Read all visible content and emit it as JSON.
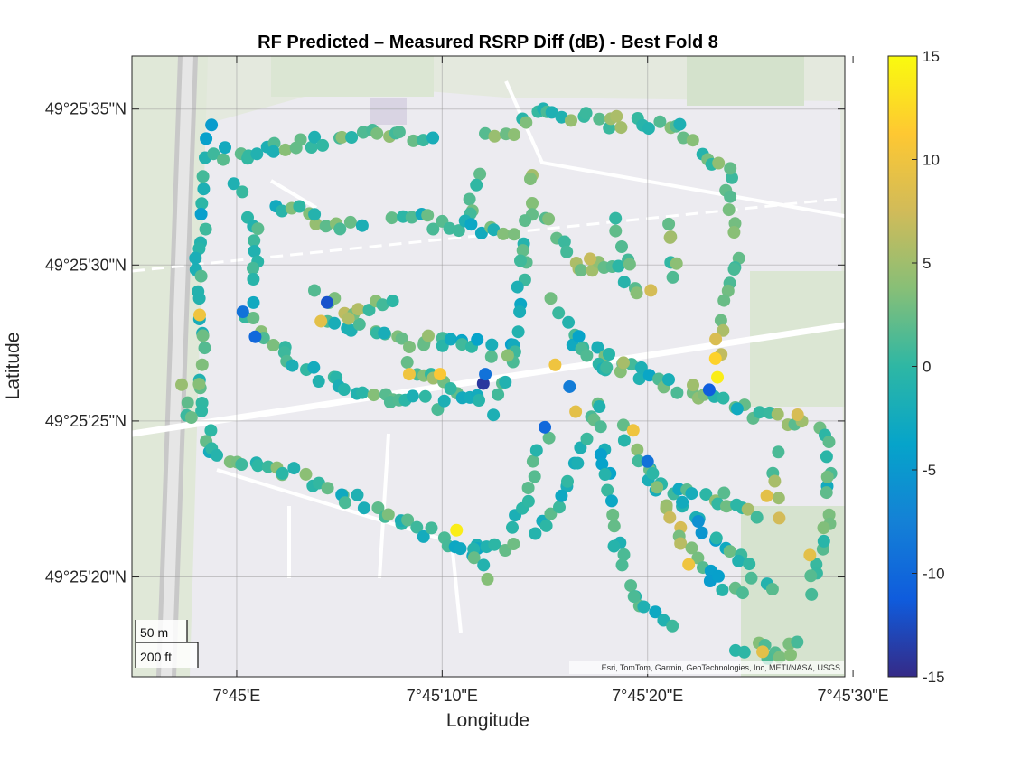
{
  "chart_data": {
    "type": "scatter",
    "title": "RF Predicted – Measured RSRP Diff (dB) - Best Fold 8",
    "xlabel": "Longitude",
    "ylabel": "Latitude",
    "x_unit": "seconds past 7°45'E",
    "y_unit": "seconds past 49°25'N",
    "xlim": [
      -5.1,
      29.6
    ],
    "ylim": [
      16.8,
      36.7
    ],
    "x_ticks": [
      0,
      10,
      20,
      30
    ],
    "x_tick_labels": [
      "7°45'E",
      "7°45'10\"E",
      "7°45'20\"E",
      "7°45'30\"E"
    ],
    "y_ticks": [
      20,
      25,
      30,
      35
    ],
    "y_tick_labels": [
      "49°25'20\"N",
      "49°25'25\"N",
      "49°25'30\"N",
      "49°25'35\"N"
    ],
    "grid": true,
    "colorbar": {
      "ticks": [
        15,
        10,
        5,
        0,
        -5,
        -10,
        -15
      ],
      "limits": [
        -15,
        15
      ],
      "colormap": "parula",
      "placement": "right"
    },
    "basemap": "topographic",
    "attribution": "Esri, TomTom, Garmin, GeoTechnologies, Inc, METI/NASA, USGS",
    "scalebar": [
      "50 m",
      "200 ft"
    ],
    "routes": [
      {
        "path": [
          [
            -1.4,
            34.3
          ],
          [
            -1.8,
            30.0
          ],
          [
            -1.7,
            26.0
          ],
          [
            -1.2,
            23.8
          ]
        ],
        "values": [
          -2,
          -1,
          1,
          0
        ]
      },
      {
        "path": [
          [
            -1.2,
            33.5
          ],
          [
            2.0,
            33.7
          ],
          [
            6.0,
            34.2
          ],
          [
            9.4,
            34.0
          ]
        ],
        "values": [
          0,
          1,
          2,
          1
        ]
      },
      {
        "path": [
          [
            -2.6,
            26.2
          ],
          [
            -2.1,
            24.9
          ]
        ],
        "values": [
          2,
          0
        ]
      },
      {
        "path": [
          [
            -1.2,
            23.9
          ],
          [
            2.0,
            23.5
          ],
          [
            5.0,
            22.7
          ],
          [
            8.0,
            21.8
          ],
          [
            11.5,
            20.9
          ],
          [
            13.5,
            21.1
          ]
        ],
        "values": [
          1,
          2,
          0,
          1,
          -2,
          0
        ]
      },
      {
        "path": [
          [
            11.5,
            21.1
          ],
          [
            12.0,
            19.8
          ]
        ],
        "values": [
          2,
          1
        ]
      },
      {
        "path": [
          [
            14.4,
            21.3
          ],
          [
            16.0,
            22.7
          ],
          [
            17.6,
            25.4
          ]
        ],
        "values": [
          -1,
          0,
          2
        ]
      },
      {
        "path": [
          [
            13.5,
            21.5
          ],
          [
            15.0,
            24.5
          ]
        ],
        "values": [
          0,
          1
        ]
      },
      {
        "path": [
          [
            12.2,
            34.0
          ],
          [
            15.0,
            34.9
          ],
          [
            18.0,
            34.6
          ],
          [
            21.5,
            34.3
          ],
          [
            23.9,
            32.9
          ]
        ],
        "values": [
          2,
          1,
          3,
          1,
          2
        ]
      },
      {
        "path": [
          [
            23.9,
            32.9
          ],
          [
            24.3,
            30.0
          ],
          [
            23.4,
            27.2
          ]
        ],
        "values": [
          1,
          3,
          7
        ]
      },
      {
        "path": [
          [
            11.8,
            33.1
          ],
          [
            11.3,
            31.5
          ]
        ],
        "values": [
          0,
          2
        ]
      },
      {
        "path": [
          [
            7.5,
            31.5
          ],
          [
            11.0,
            31.3
          ],
          [
            13.5,
            31.0
          ]
        ],
        "values": [
          1,
          -1,
          2
        ]
      },
      {
        "path": [
          [
            2.0,
            32.0
          ],
          [
            4.0,
            31.5
          ],
          [
            6.0,
            31.2
          ]
        ],
        "values": [
          0,
          2,
          1
        ]
      },
      {
        "path": [
          [
            14.3,
            33.0
          ],
          [
            14.0,
            30.0
          ],
          [
            13.5,
            27.5
          ],
          [
            12.7,
            25.3
          ]
        ],
        "values": [
          3,
          1,
          -2,
          0
        ]
      },
      {
        "path": [
          [
            15.0,
            31.5
          ],
          [
            16.8,
            30.0
          ],
          [
            18.5,
            29.8
          ],
          [
            20.0,
            29.0
          ]
        ],
        "values": [
          2,
          3,
          1,
          5
        ]
      },
      {
        "path": [
          [
            18.5,
            31.5
          ],
          [
            19.0,
            30.0
          ]
        ],
        "values": [
          2,
          0
        ]
      },
      {
        "path": [
          [
            21.0,
            31.5
          ],
          [
            21.3,
            29.5
          ]
        ],
        "values": [
          4,
          2
        ]
      },
      {
        "path": [
          [
            17.0,
            27.5
          ],
          [
            19.5,
            26.5
          ],
          [
            22.0,
            26.0
          ],
          [
            24.5,
            25.3
          ],
          [
            27.5,
            25.0
          ]
        ],
        "values": [
          1,
          -1,
          2,
          0,
          5
        ]
      },
      {
        "path": [
          [
            17.5,
            25.5
          ],
          [
            18.0,
            23.5
          ],
          [
            18.5,
            21.0
          ],
          [
            19.5,
            19.2
          ],
          [
            21.0,
            18.6
          ]
        ],
        "values": [
          0,
          -2,
          1,
          0,
          -1
        ]
      },
      {
        "path": [
          [
            18.8,
            24.8
          ],
          [
            20.5,
            23.0
          ],
          [
            22.5,
            21.8
          ],
          [
            24.5,
            20.5
          ],
          [
            26.0,
            19.5
          ]
        ],
        "values": [
          2,
          0,
          -3,
          1,
          -1
        ]
      },
      {
        "path": [
          [
            20.0,
            23.5
          ],
          [
            21.5,
            21.5
          ],
          [
            23.0,
            20.0
          ],
          [
            24.5,
            19.6
          ]
        ],
        "values": [
          1,
          5,
          -2,
          0
        ]
      },
      {
        "path": [
          [
            21.5,
            23.0
          ],
          [
            23.5,
            22.5
          ],
          [
            25.5,
            21.9
          ]
        ],
        "values": [
          -1,
          2,
          3
        ]
      },
      {
        "path": [
          [
            24.5,
            17.8
          ],
          [
            26.0,
            17.6
          ],
          [
            27.5,
            17.7
          ]
        ],
        "values": [
          2,
          0,
          3
        ]
      },
      {
        "path": [
          [
            26.2,
            23.8
          ],
          [
            26.5,
            22.0
          ]
        ],
        "values": [
          1,
          8
        ]
      },
      {
        "path": [
          [
            28.5,
            25.0
          ],
          [
            28.8,
            23.0
          ],
          [
            28.6,
            21.0
          ],
          [
            27.9,
            19.5
          ]
        ],
        "values": [
          2,
          0,
          1,
          3
        ]
      },
      {
        "path": [
          [
            0.5,
            28.5
          ],
          [
            2.5,
            27.0
          ],
          [
            5.0,
            26.2
          ],
          [
            7.5,
            25.8
          ],
          [
            10.0,
            25.5
          ]
        ],
        "values": [
          3,
          1,
          -1,
          2,
          0
        ]
      },
      {
        "path": [
          [
            4.5,
            28.2
          ],
          [
            7.0,
            27.8
          ],
          [
            9.0,
            27.5
          ],
          [
            11.0,
            27.6
          ],
          [
            13.0,
            27.2
          ]
        ],
        "values": [
          1,
          0,
          3,
          -2,
          1
        ]
      },
      {
        "path": [
          [
            4.0,
            29.0
          ],
          [
            5.5,
            28.5
          ],
          [
            7.5,
            28.8
          ]
        ],
        "values": [
          2,
          5,
          0
        ]
      },
      {
        "path": [
          [
            8.2,
            26.8
          ],
          [
            10.5,
            26.0
          ],
          [
            12.0,
            25.5
          ]
        ],
        "values": [
          4,
          1,
          -3
        ]
      },
      {
        "path": [
          [
            0.0,
            32.5
          ],
          [
            1.0,
            31.0
          ],
          [
            0.8,
            29.0
          ]
        ],
        "values": [
          1,
          -1,
          0
        ]
      },
      {
        "path": [
          [
            15.5,
            28.8
          ],
          [
            16.5,
            27.5
          ],
          [
            17.8,
            26.5
          ],
          [
            19.0,
            26.7
          ]
        ],
        "values": [
          0,
          -2,
          1,
          3
        ]
      }
    ],
    "outliers": [
      {
        "x": 12.0,
        "y": 26.2,
        "v": -14
      },
      {
        "x": 0.9,
        "y": 27.7,
        "v": -10
      },
      {
        "x": 0.3,
        "y": 28.5,
        "v": -9
      },
      {
        "x": 23.0,
        "y": 26.0,
        "v": -11
      },
      {
        "x": 23.4,
        "y": 26.4,
        "v": 14
      },
      {
        "x": 23.3,
        "y": 27.0,
        "v": 12
      },
      {
        "x": 8.4,
        "y": 26.5,
        "v": 10
      },
      {
        "x": 9.9,
        "y": 26.5,
        "v": 11
      },
      {
        "x": 12.1,
        "y": 26.5,
        "v": -9
      },
      {
        "x": 10.7,
        "y": 21.5,
        "v": 14
      },
      {
        "x": -1.8,
        "y": 28.4,
        "v": 10
      },
      {
        "x": 4.1,
        "y": 28.2,
        "v": 9
      },
      {
        "x": 15.5,
        "y": 26.8,
        "v": 10
      },
      {
        "x": 16.2,
        "y": 26.1,
        "v": -8
      },
      {
        "x": 20.0,
        "y": 23.7,
        "v": -9
      },
      {
        "x": 27.9,
        "y": 20.7,
        "v": 9
      },
      {
        "x": 22.0,
        "y": 20.4,
        "v": 10
      },
      {
        "x": 25.8,
        "y": 22.6,
        "v": 9
      },
      {
        "x": 27.3,
        "y": 25.2,
        "v": 8
      },
      {
        "x": 25.6,
        "y": 17.6,
        "v": 9
      },
      {
        "x": 19.3,
        "y": 24.7,
        "v": 10
      },
      {
        "x": 16.5,
        "y": 25.3,
        "v": 9
      },
      {
        "x": 15.0,
        "y": 24.8,
        "v": -10
      },
      {
        "x": 17.2,
        "y": 30.2,
        "v": 7
      },
      {
        "x": 4.4,
        "y": 28.8,
        "v": -12
      }
    ]
  }
}
